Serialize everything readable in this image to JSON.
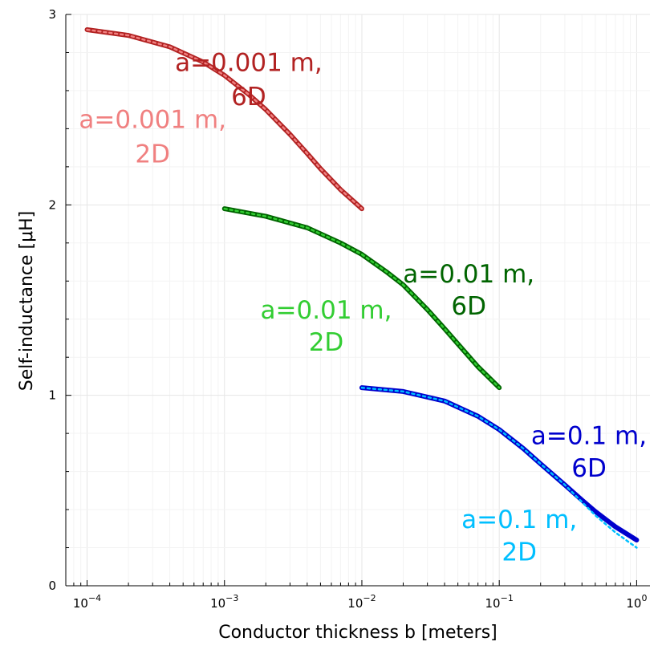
{
  "chart_data": {
    "type": "line",
    "xscale": "log10",
    "xlabel": "Conductor thickness b [meters]",
    "ylabel": "Self-inductance [μH]",
    "xlim": [
      7e-05,
      1.25
    ],
    "ylim": [
      0,
      3
    ],
    "x_ticks": [
      {
        "value": 0.0001,
        "base": "10",
        "exp": "−4"
      },
      {
        "value": 0.001,
        "base": "10",
        "exp": "−3"
      },
      {
        "value": 0.01,
        "base": "10",
        "exp": "−2"
      },
      {
        "value": 0.1,
        "base": "10",
        "exp": "−1"
      },
      {
        "value": 1,
        "base": "10",
        "exp": "0"
      }
    ],
    "y_ticks": [
      {
        "value": 0,
        "label": "0"
      },
      {
        "value": 1,
        "label": "1"
      },
      {
        "value": 2,
        "label": "2"
      },
      {
        "value": 3,
        "label": "3"
      }
    ],
    "grid": true,
    "series": [
      {
        "name": "a=0.001 m, 6D",
        "color": "#b22222",
        "style": "solid",
        "x": [
          0.0001,
          0.0002,
          0.0004,
          0.0007,
          0.001,
          0.0015,
          0.002,
          0.003,
          0.004,
          0.005,
          0.007,
          0.01
        ],
        "y": [
          2.92,
          2.89,
          2.83,
          2.75,
          2.68,
          2.58,
          2.5,
          2.37,
          2.27,
          2.19,
          2.08,
          1.98
        ]
      },
      {
        "name": "a=0.001 m, 2D",
        "color": "#f08080",
        "style": "dotted",
        "x": [
          0.0001,
          0.0002,
          0.0004,
          0.0007,
          0.001,
          0.0015,
          0.002,
          0.003,
          0.004,
          0.005,
          0.007,
          0.01
        ],
        "y": [
          2.92,
          2.89,
          2.83,
          2.75,
          2.68,
          2.58,
          2.5,
          2.37,
          2.27,
          2.19,
          2.08,
          1.98
        ]
      },
      {
        "name": "a=0.01 m, 6D",
        "color": "#006400",
        "style": "solid",
        "x": [
          0.001,
          0.002,
          0.004,
          0.007,
          0.01,
          0.015,
          0.02,
          0.03,
          0.04,
          0.05,
          0.07,
          0.1
        ],
        "y": [
          1.98,
          1.94,
          1.88,
          1.8,
          1.74,
          1.65,
          1.58,
          1.45,
          1.35,
          1.27,
          1.15,
          1.04
        ]
      },
      {
        "name": "a=0.01 m, 2D",
        "color": "#32cd32",
        "style": "dotted",
        "x": [
          0.001,
          0.002,
          0.004,
          0.007,
          0.01,
          0.015,
          0.02,
          0.03,
          0.04,
          0.05,
          0.07,
          0.1
        ],
        "y": [
          1.98,
          1.94,
          1.88,
          1.8,
          1.74,
          1.65,
          1.58,
          1.45,
          1.35,
          1.27,
          1.15,
          1.04
        ]
      },
      {
        "name": "a=0.1 m, 6D",
        "color": "#0000cd",
        "style": "solid",
        "x": [
          0.01,
          0.02,
          0.04,
          0.07,
          0.1,
          0.15,
          0.2,
          0.3,
          0.4,
          0.5,
          0.7,
          1.0
        ],
        "y": [
          1.04,
          1.02,
          0.97,
          0.89,
          0.82,
          0.72,
          0.64,
          0.53,
          0.45,
          0.39,
          0.31,
          0.24
        ]
      },
      {
        "name": "a=0.1 m, 2D",
        "color": "#00bfff",
        "style": "dotted",
        "x": [
          0.01,
          0.02,
          0.04,
          0.07,
          0.1,
          0.15,
          0.2,
          0.3,
          0.4,
          0.5,
          0.7,
          1.0
        ],
        "y": [
          1.04,
          1.02,
          0.97,
          0.89,
          0.82,
          0.72,
          0.64,
          0.53,
          0.44,
          0.37,
          0.28,
          0.2
        ]
      }
    ],
    "annotations": [
      {
        "lines": [
          "a=0.001 m,",
          "6D"
        ],
        "color": "#b22222",
        "x": 0.0015,
        "y": [
          2.75,
          2.57
        ]
      },
      {
        "lines": [
          "a=0.001 m,",
          "2D"
        ],
        "color": "#f08080",
        "x": 0.0003,
        "y": [
          2.45,
          2.27
        ]
      },
      {
        "lines": [
          "a=0.01 m,",
          "6D"
        ],
        "color": "#006400",
        "x": 0.06,
        "y": [
          1.64,
          1.47
        ]
      },
      {
        "lines": [
          "a=0.01 m,",
          "2D"
        ],
        "color": "#32cd32",
        "x": 0.0055,
        "y": [
          1.45,
          1.28
        ]
      },
      {
        "lines": [
          "a=0.1 m,",
          "6D"
        ],
        "color": "#0000cd",
        "x": 0.45,
        "y": [
          0.79,
          0.62
        ]
      },
      {
        "lines": [
          "a=0.1 m,",
          "2D"
        ],
        "color": "#00bfff",
        "x": 0.14,
        "y": [
          0.35,
          0.18
        ]
      }
    ]
  }
}
